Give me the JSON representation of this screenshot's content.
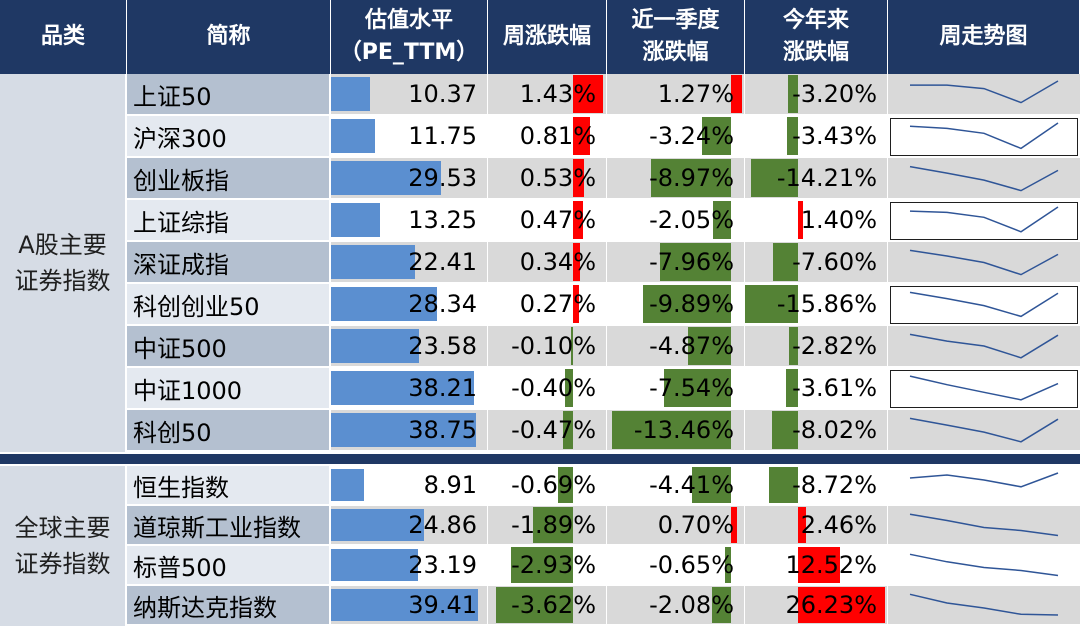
{
  "headers": {
    "category": "品类",
    "name": "简称",
    "pe_line1": "估值水平",
    "pe_line2": "（PE_TTM）",
    "week": "周涨跌幅",
    "quarter_line1": "近一季度",
    "quarter_line2": "涨跌幅",
    "ytd_line1": "今年来",
    "ytd_line2": "涨跌幅",
    "trend": "周走势图"
  },
  "groups": [
    {
      "label_line1": "A股主要",
      "label_line2": "证券指数"
    },
    {
      "label_line1": "全球主要",
      "label_line2": "证券指数"
    }
  ],
  "colors": {
    "header_bg": "#1f3864",
    "positive_bar": "#ff0000",
    "negative_bar": "#548235",
    "pe_bar": "#5b8fd0",
    "trend_line": "#2f5597"
  },
  "rows": [
    {
      "group": 0,
      "name": "上证50",
      "pe": 10.37,
      "pe_text": "10.37",
      "week": 1.43,
      "week_text": "1.43%",
      "quarter": 1.27,
      "quarter_text": "1.27%",
      "ytd": -3.2,
      "ytd_text": "-3.20%",
      "trend": [
        0.85,
        0.85,
        0.72,
        0.2,
        1.0
      ],
      "highlight": false
    },
    {
      "group": 0,
      "name": "沪深300",
      "pe": 11.75,
      "pe_text": "11.75",
      "week": 0.81,
      "week_text": "0.81%",
      "quarter": -3.24,
      "quarter_text": "-3.24%",
      "ytd": -3.43,
      "ytd_text": "-3.43%",
      "trend": [
        0.88,
        0.8,
        0.62,
        0.06,
        1.0
      ],
      "highlight": true
    },
    {
      "group": 0,
      "name": "创业板指",
      "pe": 29.53,
      "pe_text": "29.53",
      "week": 0.53,
      "week_text": "0.53%",
      "quarter": -8.97,
      "quarter_text": "-8.97%",
      "ytd": -14.21,
      "ytd_text": "-14.21%",
      "trend": [
        0.94,
        0.7,
        0.44,
        0.05,
        0.8
      ],
      "highlight": false
    },
    {
      "group": 0,
      "name": "上证综指",
      "pe": 13.25,
      "pe_text": "13.25",
      "week": 0.47,
      "week_text": "0.47%",
      "quarter": -2.05,
      "quarter_text": "-2.05%",
      "ytd": 1.4,
      "ytd_text": "1.40%",
      "trend": [
        0.85,
        0.8,
        0.62,
        0.08,
        1.0
      ],
      "highlight": true
    },
    {
      "group": 0,
      "name": "深证成指",
      "pe": 22.41,
      "pe_text": "22.41",
      "week": 0.34,
      "week_text": "0.34%",
      "quarter": -7.96,
      "quarter_text": "-7.96%",
      "ytd": -7.6,
      "ytd_text": "-7.60%",
      "trend": [
        0.95,
        0.74,
        0.5,
        0.05,
        0.8
      ],
      "highlight": false
    },
    {
      "group": 0,
      "name": "科创创业50",
      "pe": 28.34,
      "pe_text": "28.34",
      "week": 0.27,
      "week_text": "0.27%",
      "quarter": -9.89,
      "quarter_text": "-9.89%",
      "ytd": -15.86,
      "ytd_text": "-15.86%",
      "trend": [
        0.95,
        0.72,
        0.46,
        0.06,
        0.92
      ],
      "highlight": true
    },
    {
      "group": 0,
      "name": "中证500",
      "pe": 23.58,
      "pe_text": "23.58",
      "week": -0.1,
      "week_text": "-0.10%",
      "quarter": -4.87,
      "quarter_text": "-4.87%",
      "ytd": -2.82,
      "ytd_text": "-2.82%",
      "trend": [
        0.95,
        0.7,
        0.52,
        0.08,
        0.92
      ],
      "highlight": false
    },
    {
      "group": 0,
      "name": "中证1000",
      "pe": 38.21,
      "pe_text": "38.21",
      "week": -0.4,
      "week_text": "-0.40%",
      "quarter": -7.54,
      "quarter_text": "-7.54%",
      "ytd": -3.61,
      "ytd_text": "-3.61%",
      "trend": [
        0.96,
        0.64,
        0.36,
        0.08,
        0.68
      ],
      "highlight": true
    },
    {
      "group": 0,
      "name": "科创50",
      "pe": 38.75,
      "pe_text": "38.75",
      "week": -0.47,
      "week_text": "-0.47%",
      "quarter": -13.46,
      "quarter_text": "-13.46%",
      "ytd": -8.02,
      "ytd_text": "-8.02%",
      "trend": [
        0.95,
        0.7,
        0.44,
        0.08,
        0.92
      ],
      "highlight": false
    },
    {
      "group": 1,
      "name": "恒生指数",
      "pe": 8.91,
      "pe_text": "8.91",
      "week": -0.69,
      "week_text": "-0.69%",
      "quarter": -4.41,
      "quarter_text": "-4.41%",
      "ytd": -8.72,
      "ytd_text": "-8.72%",
      "trend": [
        0.8,
        0.92,
        0.72,
        0.45,
        1.0
      ],
      "highlight": false
    },
    {
      "group": 1,
      "name": "道琼斯工业指数",
      "pe": 24.86,
      "pe_text": "24.86",
      "week": -1.89,
      "week_text": "-1.89%",
      "quarter": 0.7,
      "quarter_text": "0.70%",
      "ytd": 2.46,
      "ytd_text": "2.46%",
      "trend": [
        0.95,
        0.7,
        0.42,
        0.3,
        0.1
      ],
      "highlight": false
    },
    {
      "group": 1,
      "name": "标普500",
      "pe": 23.19,
      "pe_text": "23.19",
      "week": -2.93,
      "week_text": "-2.93%",
      "quarter": -0.65,
      "quarter_text": "-0.65%",
      "ytd": 12.52,
      "ytd_text": "12.52%",
      "trend": [
        0.95,
        0.65,
        0.42,
        0.3,
        0.1
      ],
      "highlight": false
    },
    {
      "group": 1,
      "name": "纳斯达克指数",
      "pe": 39.41,
      "pe_text": "39.41",
      "week": -3.62,
      "week_text": "-3.62%",
      "quarter": -2.08,
      "quarter_text": "-2.08%",
      "ytd": 26.23,
      "ytd_text": "26.23%",
      "trend": [
        0.95,
        0.6,
        0.4,
        0.15,
        0.12
      ],
      "highlight": false
    }
  ]
}
